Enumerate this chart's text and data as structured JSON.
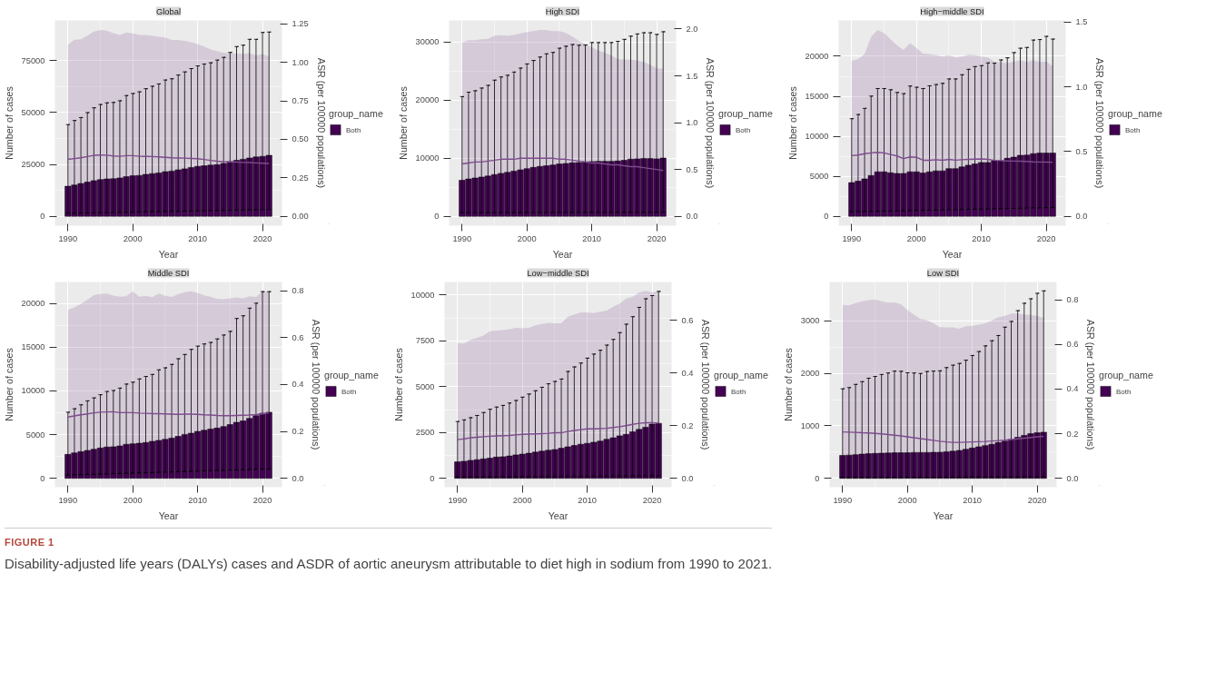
{
  "chart_data": [
    {
      "type": "bar",
      "title": "Global",
      "xlabel": "Year",
      "ylabel": "Number of cases",
      "y2label": "ASR (per 100000 populations)",
      "legend_title": "group_name",
      "legend": "right",
      "grid": true,
      "annotations": [
        "FIGURE 1",
        "Disability-adjusted life years (DALYs) cases and ASDR of aortic aneurysm attributable to diet high in sodium from 1990 to 2021."
      ],
      "x": [
        1990,
        1991,
        1992,
        1993,
        1994,
        1995,
        1996,
        1997,
        1998,
        1999,
        2000,
        2001,
        2002,
        2003,
        2004,
        2005,
        2006,
        2007,
        2008,
        2009,
        2010,
        2011,
        2012,
        2013,
        2014,
        2015,
        2016,
        2017,
        2018,
        2019,
        2020,
        2021
      ],
      "xlim": [
        1988,
        2023
      ],
      "xticks": [
        1990,
        2000,
        2010,
        2020
      ],
      "ylim": [
        -4500,
        94400
      ],
      "yticks": [
        0,
        25000,
        50000,
        75000
      ],
      "y2lim": [
        -0.0606,
        1.272
      ],
      "y2ticks": [
        {
          "value": 0,
          "label": "0.00"
        },
        {
          "value": 0.25,
          "label": "0.25"
        },
        {
          "value": 0.5,
          "label": "0.50"
        },
        {
          "value": 0.75,
          "label": "0.75"
        },
        {
          "value": 1,
          "label": "1.00"
        },
        {
          "value": 1.25,
          "label": "1.25"
        }
      ],
      "series": [
        {
          "name": "Both",
          "color": "#440154",
          "values": [
            14500,
            15100,
            15800,
            16500,
            17200,
            17700,
            18000,
            18100,
            18500,
            19100,
            19600,
            19700,
            20200,
            20600,
            20900,
            21500,
            21800,
            22400,
            22900,
            23500,
            24100,
            24400,
            24700,
            24900,
            25500,
            26400,
            27000,
            27500,
            28100,
            28600,
            28900,
            29400
          ],
          "errors": [
            [
              1400,
              44200
            ],
            [
              1460,
              46200
            ],
            [
              1520,
              47600
            ],
            [
              1580,
              50000
            ],
            [
              1650,
              52300
            ],
            [
              1710,
              53900
            ],
            [
              1770,
              54700
            ],
            [
              1830,
              54900
            ],
            [
              1890,
              55700
            ],
            [
              1950,
              58200
            ],
            [
              2010,
              59200
            ],
            [
              2070,
              60000
            ],
            [
              2140,
              61500
            ],
            [
              2200,
              62700
            ],
            [
              2260,
              63800
            ],
            [
              2320,
              65700
            ],
            [
              2380,
              66300
            ],
            [
              2440,
              68100
            ],
            [
              2500,
              69600
            ],
            [
              2570,
              71200
            ],
            [
              2630,
              72500
            ],
            [
              2690,
              73400
            ],
            [
              2750,
              74000
            ],
            [
              2810,
              75300
            ],
            [
              2870,
              76600
            ],
            [
              2930,
              79000
            ],
            [
              3000,
              81800
            ],
            [
              3060,
              82500
            ],
            [
              3120,
              85300
            ],
            [
              3180,
              85300
            ],
            [
              3240,
              88600
            ],
            [
              3300,
              88800
            ]
          ]
        },
        {
          "type": "line",
          "axis": "y2",
          "color": "#7e4b8e",
          "values": [
            0.37,
            0.375,
            0.38,
            0.388,
            0.396,
            0.398,
            0.397,
            0.392,
            0.39,
            0.394,
            0.394,
            0.39,
            0.389,
            0.388,
            0.386,
            0.383,
            0.38,
            0.379,
            0.378,
            0.376,
            0.374,
            0.369,
            0.363,
            0.358,
            0.355,
            0.354,
            0.352,
            0.35,
            0.349,
            0.347,
            0.345,
            0.343
          ],
          "lower": [
            0,
            0,
            0,
            0,
            0,
            0,
            0,
            0,
            0,
            0,
            0,
            0,
            0,
            0,
            0,
            0,
            0,
            0,
            0,
            0,
            0,
            0,
            0,
            0,
            0,
            0,
            0,
            0,
            0,
            0,
            0,
            0
          ],
          "upper": [
            1.114,
            1.146,
            1.15,
            1.173,
            1.2,
            1.21,
            1.205,
            1.19,
            1.178,
            1.194,
            1.188,
            1.178,
            1.177,
            1.172,
            1.166,
            1.161,
            1.145,
            1.145,
            1.14,
            1.13,
            1.118,
            1.102,
            1.083,
            1.073,
            1.063,
            1.059,
            1.057,
            1.054,
            1.06,
            1.043,
            1.054,
            1.038
          ]
        }
      ]
    },
    {
      "type": "bar",
      "title": "High SDI",
      "xlabel": "Year",
      "ylabel": "Number of cases",
      "y2label": "ASR (per 100000 populations)",
      "legend_title": "group_name",
      "legend": "right",
      "grid": true,
      "x": [
        1990,
        1991,
        1992,
        1993,
        1994,
        1995,
        1996,
        1997,
        1998,
        1999,
        2000,
        2001,
        2002,
        2003,
        2004,
        2005,
        2006,
        2007,
        2008,
        2009,
        2010,
        2011,
        2012,
        2013,
        2014,
        2015,
        2016,
        2017,
        2018,
        2019,
        2020,
        2021
      ],
      "xlim": [
        1988,
        2023
      ],
      "xticks": [
        1990,
        2000,
        2010,
        2020
      ],
      "ylim": [
        -1600,
        33670
      ],
      "yticks": [
        0,
        10000,
        20000,
        30000
      ],
      "y2lim": [
        -0.0997,
        2.092
      ],
      "y2ticks": [
        {
          "value": 0,
          "label": "0.0"
        },
        {
          "value": 0.5,
          "label": "0.5"
        },
        {
          "value": 1,
          "label": "1.0"
        },
        {
          "value": 1.5,
          "label": "1.5"
        },
        {
          "value": 2,
          "label": "2.0"
        }
      ],
      "series": [
        {
          "name": "Both",
          "color": "#440154",
          "values": [
            6210,
            6420,
            6590,
            6760,
            6930,
            7180,
            7390,
            7560,
            7770,
            7990,
            8200,
            8410,
            8580,
            8700,
            8830,
            9000,
            9080,
            9210,
            9250,
            9380,
            9420,
            9460,
            9460,
            9460,
            9510,
            9630,
            9840,
            9890,
            9930,
            9930,
            9890,
            10010
          ],
          "errors": [
            [
              600,
              20580
            ],
            [
              600,
              21340
            ],
            [
              610,
              21590
            ],
            [
              610,
              22050
            ],
            [
              620,
              22520
            ],
            [
              620,
              23410
            ],
            [
              620,
              23960
            ],
            [
              630,
              24250
            ],
            [
              630,
              24800
            ],
            [
              640,
              25480
            ],
            [
              640,
              26200
            ],
            [
              640,
              26790
            ],
            [
              650,
              27380
            ],
            [
              650,
              27930
            ],
            [
              650,
              28180
            ],
            [
              660,
              28900
            ],
            [
              660,
              29240
            ],
            [
              660,
              29530
            ],
            [
              670,
              29410
            ],
            [
              670,
              29450
            ],
            [
              670,
              29870
            ],
            [
              680,
              29870
            ],
            [
              680,
              29870
            ],
            [
              680,
              29870
            ],
            [
              690,
              30080
            ],
            [
              690,
              30420
            ],
            [
              690,
              30970
            ],
            [
              700,
              31350
            ],
            [
              700,
              31560
            ],
            [
              700,
              31560
            ],
            [
              700,
              31270
            ],
            [
              700,
              31730
            ]
          ]
        },
        {
          "type": "line",
          "axis": "y2",
          "color": "#7e4b8e",
          "values": [
            0.56,
            0.57,
            0.58,
            0.58,
            0.59,
            0.6,
            0.61,
            0.61,
            0.61,
            0.62,
            0.62,
            0.62,
            0.62,
            0.62,
            0.62,
            0.61,
            0.61,
            0.6,
            0.59,
            0.58,
            0.57,
            0.57,
            0.56,
            0.55,
            0.55,
            0.54,
            0.53,
            0.53,
            0.52,
            0.51,
            0.5,
            0.49
          ],
          "lower": [
            0,
            0,
            0,
            0,
            0,
            0,
            0,
            0,
            0,
            0,
            0,
            0,
            0,
            0,
            0,
            0,
            0,
            0,
            0,
            0,
            0,
            0,
            0,
            0,
            0,
            0,
            0,
            0,
            0,
            0,
            0,
            0
          ],
          "upper": [
            1.858,
            1.882,
            1.882,
            1.89,
            1.895,
            1.929,
            1.934,
            1.929,
            1.937,
            1.955,
            1.969,
            1.979,
            1.99,
            1.99,
            1.979,
            1.979,
            1.958,
            1.921,
            1.874,
            1.837,
            1.803,
            1.772,
            1.748,
            1.719,
            1.68,
            1.672,
            1.675,
            1.664,
            1.648,
            1.619,
            1.58,
            1.575
          ]
        }
      ]
    },
    {
      "type": "bar",
      "title": "High−middle SDI",
      "xlabel": "Year",
      "ylabel": "Number of cases",
      "y2label": "ASR (per 100000 populations)",
      "legend_title": "group_name",
      "legend": "right",
      "grid": true,
      "x": [
        1990,
        1991,
        1992,
        1993,
        1994,
        1995,
        1996,
        1997,
        1998,
        1999,
        2000,
        2001,
        2002,
        2003,
        2004,
        2005,
        2006,
        2007,
        2008,
        2009,
        2010,
        2011,
        2012,
        2013,
        2014,
        2015,
        2016,
        2017,
        2018,
        2019,
        2020,
        2021
      ],
      "xlim": [
        1988,
        2023
      ],
      "xticks": [
        1990,
        2000,
        2010,
        2020
      ],
      "ylim": [
        -1170,
        24480
      ],
      "yticks": [
        0,
        5000,
        10000,
        15000,
        20000
      ],
      "y2lim": [
        -0.0722,
        1.513
      ],
      "y2ticks": [
        {
          "value": 0,
          "label": "0.0"
        },
        {
          "value": 0.5,
          "label": "0.5"
        },
        {
          "value": 1,
          "label": "1.0"
        },
        {
          "value": 1.5,
          "label": "1.5"
        }
      ],
      "series": [
        {
          "name": "Both",
          "color": "#440154",
          "values": [
            4210,
            4390,
            4670,
            5100,
            5560,
            5560,
            5440,
            5350,
            5350,
            5560,
            5560,
            5410,
            5560,
            5680,
            5680,
            5960,
            5960,
            6170,
            6390,
            6540,
            6730,
            6730,
            6940,
            6940,
            7250,
            7400,
            7620,
            7650,
            7830,
            7900,
            7900,
            7900
          ],
          "errors": [
            [
              550,
              12200
            ],
            [
              570,
              12720
            ],
            [
              590,
              13490
            ],
            [
              610,
              15020
            ],
            [
              620,
              15970
            ],
            [
              640,
              15970
            ],
            [
              660,
              15820
            ],
            [
              680,
              15480
            ],
            [
              690,
              15330
            ],
            [
              710,
              16280
            ],
            [
              730,
              16130
            ],
            [
              750,
              15970
            ],
            [
              760,
              16310
            ],
            [
              780,
              16470
            ],
            [
              800,
              16620
            ],
            [
              820,
              17170
            ],
            [
              830,
              17170
            ],
            [
              850,
              17690
            ],
            [
              870,
              18370
            ],
            [
              890,
              18710
            ],
            [
              900,
              18830
            ],
            [
              920,
              19170
            ],
            [
              940,
              19140
            ],
            [
              960,
              19540
            ],
            [
              980,
              19810
            ],
            [
              990,
              20460
            ],
            [
              1010,
              21010
            ],
            [
              1030,
              21100
            ],
            [
              1050,
              22030
            ],
            [
              1060,
              22090
            ],
            [
              1080,
              22490
            ],
            [
              1100,
              22150
            ]
          ]
        },
        {
          "type": "line",
          "axis": "y2",
          "color": "#7e4b8e",
          "values": [
            0.469,
            0.473,
            0.484,
            0.49,
            0.494,
            0.49,
            0.478,
            0.466,
            0.446,
            0.459,
            0.456,
            0.433,
            0.433,
            0.437,
            0.433,
            0.44,
            0.434,
            0.437,
            0.44,
            0.442,
            0.443,
            0.44,
            0.432,
            0.43,
            0.428,
            0.427,
            0.426,
            0.424,
            0.421,
            0.42,
            0.419,
            0.418
          ],
          "lower": [
            0,
            0,
            0,
            0,
            0,
            0,
            0,
            0,
            0,
            0,
            0,
            0,
            0,
            0,
            0,
            0,
            0,
            0,
            0,
            0,
            0,
            0,
            0,
            0,
            0,
            0,
            0,
            0,
            0,
            0,
            0,
            0
          ],
          "upper": [
            1.2,
            1.215,
            1.253,
            1.386,
            1.439,
            1.414,
            1.367,
            1.32,
            1.285,
            1.337,
            1.3,
            1.257,
            1.253,
            1.244,
            1.234,
            1.244,
            1.228,
            1.234,
            1.249,
            1.247,
            1.234,
            1.228,
            1.196,
            1.192,
            1.183,
            1.196,
            1.206,
            1.192,
            1.206,
            1.192,
            1.196,
            1.158
          ]
        }
      ]
    },
    {
      "type": "bar",
      "title": "Middle SDI",
      "xlabel": "Year",
      "ylabel": "Number of cases",
      "y2label": "ASR (per 100000 populations)",
      "legend_title": "group_name",
      "legend": "right",
      "grid": true,
      "x": [
        1990,
        1991,
        1992,
        1993,
        1994,
        1995,
        1996,
        1997,
        1998,
        1999,
        2000,
        2001,
        2002,
        2003,
        2004,
        2005,
        2006,
        2007,
        2008,
        2009,
        2010,
        2011,
        2012,
        2013,
        2014,
        2015,
        2016,
        2017,
        2018,
        2019,
        2020,
        2021
      ],
      "xlim": [
        1988,
        2023
      ],
      "xticks": [
        1990,
        2000,
        2010,
        2020
      ],
      "ylim": [
        -1016,
        22455
      ],
      "yticks": [
        0,
        5000,
        10000,
        15000,
        20000
      ],
      "y2lim": [
        -0.0378,
        0.837
      ],
      "y2ticks": [
        {
          "value": 0,
          "label": "0.0"
        },
        {
          "value": 0.2,
          "label": "0.2"
        },
        {
          "value": 0.4,
          "label": "0.4"
        },
        {
          "value": 0.6,
          "label": "0.6"
        },
        {
          "value": 0.8,
          "label": "0.8"
        }
      ],
      "series": [
        {
          "name": "Both",
          "color": "#440154",
          "values": [
            2740,
            2910,
            3050,
            3190,
            3330,
            3470,
            3580,
            3610,
            3700,
            3890,
            3950,
            4010,
            4090,
            4230,
            4340,
            4460,
            4600,
            4800,
            5020,
            5160,
            5360,
            5500,
            5640,
            5750,
            5920,
            6150,
            6400,
            6570,
            6860,
            7170,
            7450,
            7560
          ],
          "errors": [
            [
              370,
              7560
            ],
            [
              390,
              7960
            ],
            [
              410,
              8410
            ],
            [
              440,
              8860
            ],
            [
              460,
              9200
            ],
            [
              480,
              9560
            ],
            [
              500,
              9930
            ],
            [
              530,
              10040
            ],
            [
              550,
              10320
            ],
            [
              570,
              10780
            ],
            [
              600,
              11000
            ],
            [
              620,
              11370
            ],
            [
              640,
              11650
            ],
            [
              660,
              11880
            ],
            [
              690,
              12410
            ],
            [
              710,
              12640
            ],
            [
              730,
              13030
            ],
            [
              760,
              13680
            ],
            [
              780,
              14160
            ],
            [
              800,
              14750
            ],
            [
              820,
              15120
            ],
            [
              850,
              15370
            ],
            [
              870,
              15540
            ],
            [
              890,
              15940
            ],
            [
              910,
              16390
            ],
            [
              940,
              16810
            ],
            [
              960,
              18280
            ],
            [
              980,
              18590
            ],
            [
              1000,
              19460
            ],
            [
              1030,
              20030
            ],
            [
              1050,
              21350
            ],
            [
              1070,
              21350
            ]
          ]
        },
        {
          "type": "line",
          "axis": "y2",
          "color": "#7e4b8e",
          "values": [
            0.261,
            0.266,
            0.271,
            0.275,
            0.279,
            0.282,
            0.283,
            0.284,
            0.28,
            0.28,
            0.28,
            0.278,
            0.277,
            0.276,
            0.276,
            0.275,
            0.274,
            0.273,
            0.274,
            0.274,
            0.273,
            0.271,
            0.27,
            0.268,
            0.267,
            0.267,
            0.268,
            0.269,
            0.27,
            0.272,
            0.275,
            0.279
          ],
          "lower": [
            0,
            0,
            0,
            0,
            0,
            0,
            0,
            0,
            0,
            0,
            0,
            0,
            0,
            0,
            0,
            0,
            0,
            0,
            0,
            0,
            0,
            0,
            0,
            0,
            0,
            0,
            0,
            0,
            0,
            0,
            0,
            0
          ],
          "upper": [
            0.718,
            0.729,
            0.744,
            0.762,
            0.781,
            0.786,
            0.788,
            0.779,
            0.774,
            0.776,
            0.797,
            0.774,
            0.778,
            0.772,
            0.788,
            0.778,
            0.773,
            0.785,
            0.793,
            0.797,
            0.791,
            0.78,
            0.774,
            0.765,
            0.763,
            0.767,
            0.771,
            0.767,
            0.776,
            0.773,
            0.797,
            0.794
          ]
        }
      ]
    },
    {
      "type": "bar",
      "title": "Low−middle SDI",
      "xlabel": "Year",
      "ylabel": "Number of cases",
      "y2label": "ASR (per 100000 populations)",
      "legend_title": "group_name",
      "legend": "right",
      "grid": true,
      "x": [
        1990,
        1991,
        1992,
        1993,
        1994,
        1995,
        1996,
        1997,
        1998,
        1999,
        2000,
        2001,
        2002,
        2003,
        2004,
        2005,
        2006,
        2007,
        2008,
        2009,
        2010,
        2011,
        2012,
        2013,
        2014,
        2015,
        2016,
        2017,
        2018,
        2019,
        2020,
        2021
      ],
      "xlim": [
        1988,
        2023
      ],
      "xticks": [
        1990,
        2000,
        2010,
        2020
      ],
      "ylim": [
        -485,
        10714
      ],
      "yticks": [
        0,
        2500,
        5000,
        7500,
        10000
      ],
      "y2lim": [
        -0.0338,
        0.746
      ],
      "y2ticks": [
        {
          "value": 0,
          "label": "0.0"
        },
        {
          "value": 0.2,
          "label": "0.2"
        },
        {
          "value": 0.4,
          "label": "0.4"
        },
        {
          "value": 0.6,
          "label": "0.6"
        }
      ],
      "series": [
        {
          "name": "Both",
          "color": "#440154",
          "values": [
            900,
            930,
            980,
            1020,
            1060,
            1100,
            1160,
            1180,
            1220,
            1280,
            1320,
            1370,
            1430,
            1480,
            1530,
            1570,
            1640,
            1720,
            1790,
            1860,
            1910,
            1970,
            2030,
            2130,
            2210,
            2320,
            2400,
            2540,
            2670,
            2790,
            2960,
            3000
          ],
          "errors": [
            [
              70,
              3100
            ],
            [
              72,
              3190
            ],
            [
              74,
              3310
            ],
            [
              76,
              3430
            ],
            [
              78,
              3590
            ],
            [
              80,
              3770
            ],
            [
              82,
              3890
            ],
            [
              84,
              3980
            ],
            [
              86,
              4110
            ],
            [
              88,
              4250
            ],
            [
              90,
              4430
            ],
            [
              92,
              4600
            ],
            [
              94,
              4780
            ],
            [
              96,
              4970
            ],
            [
              98,
              5160
            ],
            [
              100,
              5290
            ],
            [
              102,
              5420
            ],
            [
              104,
              5830
            ],
            [
              106,
              6080
            ],
            [
              108,
              6290
            ],
            [
              110,
              6560
            ],
            [
              112,
              6780
            ],
            [
              114,
              6990
            ],
            [
              116,
              7270
            ],
            [
              118,
              7580
            ],
            [
              120,
              7950
            ],
            [
              122,
              8410
            ],
            [
              125,
              8820
            ],
            [
              128,
              9330
            ],
            [
              131,
              9800
            ],
            [
              133,
              9970
            ],
            [
              135,
              10200
            ]
          ]
        },
        {
          "type": "line",
          "axis": "y2",
          "color": "#7e4b8e",
          "values": [
            0.147,
            0.15,
            0.154,
            0.156,
            0.158,
            0.16,
            0.161,
            0.162,
            0.163,
            0.165,
            0.167,
            0.168,
            0.169,
            0.17,
            0.171,
            0.173,
            0.173,
            0.178,
            0.182,
            0.185,
            0.188,
            0.188,
            0.189,
            0.19,
            0.193,
            0.196,
            0.2,
            0.205,
            0.209,
            0.211,
            0.211,
            0.21
          ],
          "lower": [
            0,
            0,
            0,
            0,
            0,
            0,
            0,
            0,
            0,
            0,
            0,
            0,
            0,
            0,
            0,
            0,
            0,
            0,
            0,
            0,
            0,
            0,
            0,
            0,
            0,
            0,
            0,
            0,
            0,
            0,
            0,
            0
          ],
          "upper": [
            0.514,
            0.512,
            0.526,
            0.534,
            0.542,
            0.559,
            0.561,
            0.563,
            0.567,
            0.572,
            0.57,
            0.572,
            0.581,
            0.586,
            0.591,
            0.589,
            0.589,
            0.614,
            0.623,
            0.63,
            0.63,
            0.628,
            0.633,
            0.637,
            0.652,
            0.664,
            0.683,
            0.69,
            0.706,
            0.712,
            0.706,
            0.711
          ]
        }
      ]
    },
    {
      "type": "bar",
      "title": "Low SDI",
      "xlabel": "Year",
      "ylabel": "Number of cases",
      "y2label": "ASR (per 100000 populations)",
      "legend_title": "group_name",
      "legend": "right",
      "grid": true,
      "x": [
        1990,
        1991,
        1992,
        1993,
        1994,
        1995,
        1996,
        1997,
        1998,
        1999,
        2000,
        2001,
        2002,
        2003,
        2004,
        2005,
        2006,
        2007,
        2008,
        2009,
        2010,
        2011,
        2012,
        2013,
        2014,
        2015,
        2016,
        2017,
        2018,
        2019,
        2020,
        2021
      ],
      "xlim": [
        1988,
        2023
      ],
      "xticks": [
        1990,
        2000,
        2010,
        2020
      ],
      "ylim": [
        -169,
        3743
      ],
      "yticks": [
        0,
        1000,
        2000,
        3000
      ],
      "y2lim": [
        -0.0398,
        0.8796
      ],
      "y2ticks": [
        {
          "value": 0,
          "label": "0.0"
        },
        {
          "value": 0.2,
          "label": "0.2"
        },
        {
          "value": 0.4,
          "label": "0.4"
        },
        {
          "value": 0.6,
          "label": "0.6"
        },
        {
          "value": 0.8,
          "label": "0.8"
        }
      ],
      "series": [
        {
          "name": "Both",
          "color": "#440154",
          "values": [
            437,
            442,
            451,
            461,
            470,
            475,
            480,
            484,
            489,
            489,
            489,
            494,
            494,
            494,
            498,
            498,
            508,
            517,
            531,
            555,
            578,
            602,
            625,
            649,
            682,
            710,
            743,
            781,
            818,
            851,
            870,
            880
          ],
          "errors": [
            [
              15,
              1707
            ],
            [
              15,
              1730
            ],
            [
              16,
              1791
            ],
            [
              16,
              1843
            ],
            [
              17,
              1909
            ],
            [
              17,
              1942
            ],
            [
              18,
              1980
            ],
            [
              18,
              2008
            ],
            [
              19,
              2045
            ],
            [
              19,
              2041
            ],
            [
              20,
              2012
            ],
            [
              20,
              2008
            ],
            [
              21,
              1998
            ],
            [
              21,
              2036
            ],
            [
              22,
              2045
            ],
            [
              22,
              2050
            ],
            [
              23,
              2111
            ],
            [
              23,
              2158
            ],
            [
              24,
              2191
            ],
            [
              24,
              2252
            ],
            [
              25,
              2342
            ],
            [
              25,
              2417
            ],
            [
              26,
              2525
            ],
            [
              26,
              2624
            ],
            [
              27,
              2722
            ],
            [
              27,
              2882
            ],
            [
              28,
              2991
            ],
            [
              28,
              3197
            ],
            [
              29,
              3338
            ],
            [
              29,
              3423
            ],
            [
              30,
              3527
            ],
            [
              30,
              3574
            ]
          ]
        },
        {
          "type": "line",
          "axis": "y2",
          "color": "#7e4b8e",
          "values": [
            0.208,
            0.207,
            0.206,
            0.204,
            0.203,
            0.201,
            0.199,
            0.196,
            0.193,
            0.19,
            0.186,
            0.182,
            0.178,
            0.174,
            0.17,
            0.166,
            0.163,
            0.161,
            0.161,
            0.162,
            0.163,
            0.164,
            0.165,
            0.167,
            0.169,
            0.171,
            0.174,
            0.177,
            0.18,
            0.183,
            0.186,
            0.188
          ],
          "lower": [
            0,
            0,
            0,
            0,
            0,
            0,
            0,
            0,
            0,
            0,
            0,
            0,
            0,
            0,
            0,
            0,
            0,
            0,
            0,
            0,
            0,
            0,
            0,
            0,
            0,
            0,
            0,
            0,
            0,
            0,
            0,
            0
          ],
          "upper": [
            0.777,
            0.775,
            0.785,
            0.793,
            0.798,
            0.801,
            0.793,
            0.787,
            0.788,
            0.78,
            0.755,
            0.733,
            0.714,
            0.709,
            0.694,
            0.677,
            0.676,
            0.676,
            0.67,
            0.681,
            0.683,
            0.688,
            0.694,
            0.707,
            0.722,
            0.727,
            0.738,
            0.738,
            0.733,
            0.732,
            0.727,
            0.718
          ]
        }
      ]
    }
  ]
}
